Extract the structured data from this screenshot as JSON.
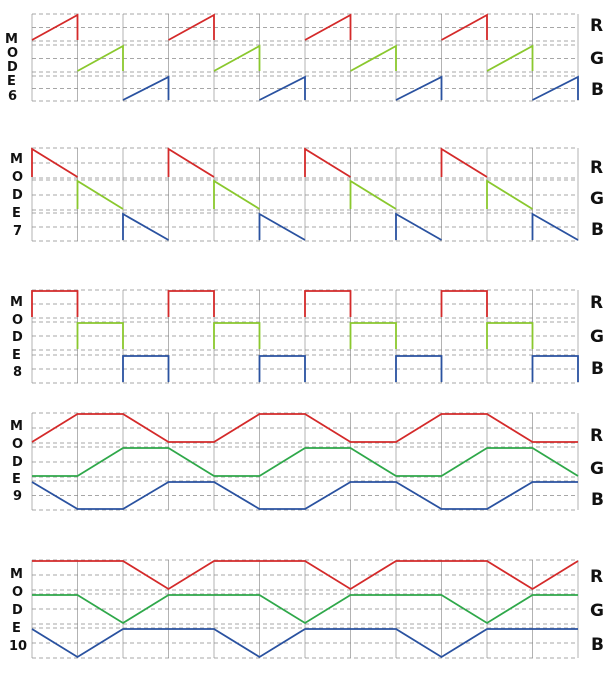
{
  "colors": {
    "red": "#d42a2a",
    "green": "#8ac82e",
    "green_mode": "#2fa84a",
    "blue": "#2a52a0"
  },
  "channel_labels": [
    "R",
    "G",
    "B"
  ],
  "modes": [
    {
      "id": "mode-6",
      "letters": [
        "M",
        "O",
        "D",
        "E",
        "6"
      ],
      "waveform": "sawtooth-rising",
      "channels": [
        {
          "name": "R",
          "color": "red",
          "cycles": [
            [
              0,
              1
            ],
            [
              3,
              4
            ],
            [
              6,
              7
            ],
            [
              9,
              10
            ]
          ]
        },
        {
          "name": "G",
          "color": "green",
          "cycles": [
            [
              1,
              2
            ],
            [
              4,
              5
            ],
            [
              7,
              8
            ],
            [
              10,
              11
            ]
          ]
        },
        {
          "name": "B",
          "color": "blue",
          "cycles": [
            [
              2,
              3
            ],
            [
              5,
              6
            ],
            [
              8,
              9
            ],
            [
              11,
              12
            ]
          ]
        }
      ]
    },
    {
      "id": "mode-7",
      "letters": [
        "M",
        "O",
        "D",
        "E",
        "7"
      ],
      "waveform": "sawtooth-falling",
      "channels": [
        {
          "name": "R",
          "color": "red",
          "cycles": [
            [
              0,
              1
            ],
            [
              3,
              4
            ],
            [
              6,
              7
            ],
            [
              9,
              10
            ]
          ]
        },
        {
          "name": "G",
          "color": "green",
          "cycles": [
            [
              1,
              2
            ],
            [
              4,
              5
            ],
            [
              7,
              8
            ],
            [
              10,
              11
            ]
          ]
        },
        {
          "name": "B",
          "color": "blue",
          "cycles": [
            [
              2,
              3
            ],
            [
              5,
              6
            ],
            [
              8,
              9
            ],
            [
              11,
              12
            ]
          ]
        }
      ]
    },
    {
      "id": "mode-8",
      "letters": [
        "M",
        "O",
        "D",
        "E",
        "8"
      ],
      "waveform": "square",
      "channels": [
        {
          "name": "R",
          "color": "red",
          "cycles": [
            [
              0,
              1
            ],
            [
              3,
              4
            ],
            [
              6,
              7
            ],
            [
              9,
              10
            ]
          ]
        },
        {
          "name": "G",
          "color": "green",
          "cycles": [
            [
              1,
              2
            ],
            [
              4,
              5
            ],
            [
              7,
              8
            ],
            [
              10,
              11
            ]
          ]
        },
        {
          "name": "B",
          "color": "blue",
          "cycles": [
            [
              2,
              3
            ],
            [
              5,
              6
            ],
            [
              8,
              9
            ],
            [
              11,
              12
            ]
          ]
        }
      ]
    },
    {
      "id": "mode-9",
      "letters": [
        "M",
        "O",
        "D",
        "E",
        "9"
      ],
      "waveform": "trapezoid",
      "channels": [
        {
          "name": "R",
          "color": "red",
          "points": [
            [
              0,
              0
            ],
            [
              1,
              1
            ],
            [
              2,
              1
            ],
            [
              3,
              0
            ],
            [
              4,
              0
            ],
            [
              5,
              1
            ],
            [
              6,
              1
            ],
            [
              7,
              0
            ],
            [
              8,
              0
            ],
            [
              9,
              1
            ],
            [
              10,
              1
            ],
            [
              11,
              0
            ],
            [
              12,
              0
            ]
          ]
        },
        {
          "name": "G",
          "color": "green_mode",
          "points": [
            [
              0,
              0
            ],
            [
              1,
              0
            ],
            [
              2,
              1
            ],
            [
              3,
              1
            ],
            [
              4,
              0
            ],
            [
              5,
              0
            ],
            [
              6,
              1
            ],
            [
              7,
              1
            ],
            [
              8,
              0
            ],
            [
              9,
              0
            ],
            [
              10,
              1
            ],
            [
              11,
              1
            ],
            [
              12,
              0
            ]
          ]
        },
        {
          "name": "B",
          "color": "blue",
          "points": [
            [
              0,
              1
            ],
            [
              1,
              0
            ],
            [
              2,
              0
            ],
            [
              3,
              1
            ],
            [
              4,
              1
            ],
            [
              5,
              0
            ],
            [
              6,
              0
            ],
            [
              7,
              1
            ],
            [
              8,
              1
            ],
            [
              9,
              0
            ],
            [
              10,
              0
            ],
            [
              11,
              1
            ],
            [
              12,
              1
            ]
          ]
        }
      ]
    },
    {
      "id": "mode-10",
      "letters": [
        "M",
        "O",
        "D",
        "E",
        "10"
      ],
      "waveform": "trapezoid-dip",
      "channels": [
        {
          "name": "R",
          "color": "red",
          "points": [
            [
              0,
              1
            ],
            [
              1,
              1
            ],
            [
              2,
              1
            ],
            [
              3,
              0
            ],
            [
              4,
              1
            ],
            [
              5,
              1
            ],
            [
              6,
              1
            ],
            [
              7,
              0
            ],
            [
              8,
              1
            ],
            [
              9,
              1
            ],
            [
              10,
              1
            ],
            [
              11,
              0
            ],
            [
              12,
              1
            ]
          ]
        },
        {
          "name": "G",
          "color": "green_mode",
          "points": [
            [
              0,
              1
            ],
            [
              1,
              1
            ],
            [
              2,
              0
            ],
            [
              3,
              1
            ],
            [
              4,
              1
            ],
            [
              5,
              1
            ],
            [
              6,
              0
            ],
            [
              7,
              1
            ],
            [
              8,
              1
            ],
            [
              9,
              1
            ],
            [
              10,
              0
            ],
            [
              11,
              1
            ],
            [
              12,
              1
            ]
          ]
        },
        {
          "name": "B",
          "color": "blue",
          "points": [
            [
              0,
              1
            ],
            [
              1,
              0
            ],
            [
              2,
              1
            ],
            [
              3,
              1
            ],
            [
              4,
              1
            ],
            [
              5,
              0
            ],
            [
              6,
              1
            ],
            [
              7,
              1
            ],
            [
              8,
              1
            ],
            [
              9,
              0
            ],
            [
              10,
              1
            ],
            [
              11,
              1
            ],
            [
              12,
              1
            ]
          ]
        }
      ]
    }
  ]
}
